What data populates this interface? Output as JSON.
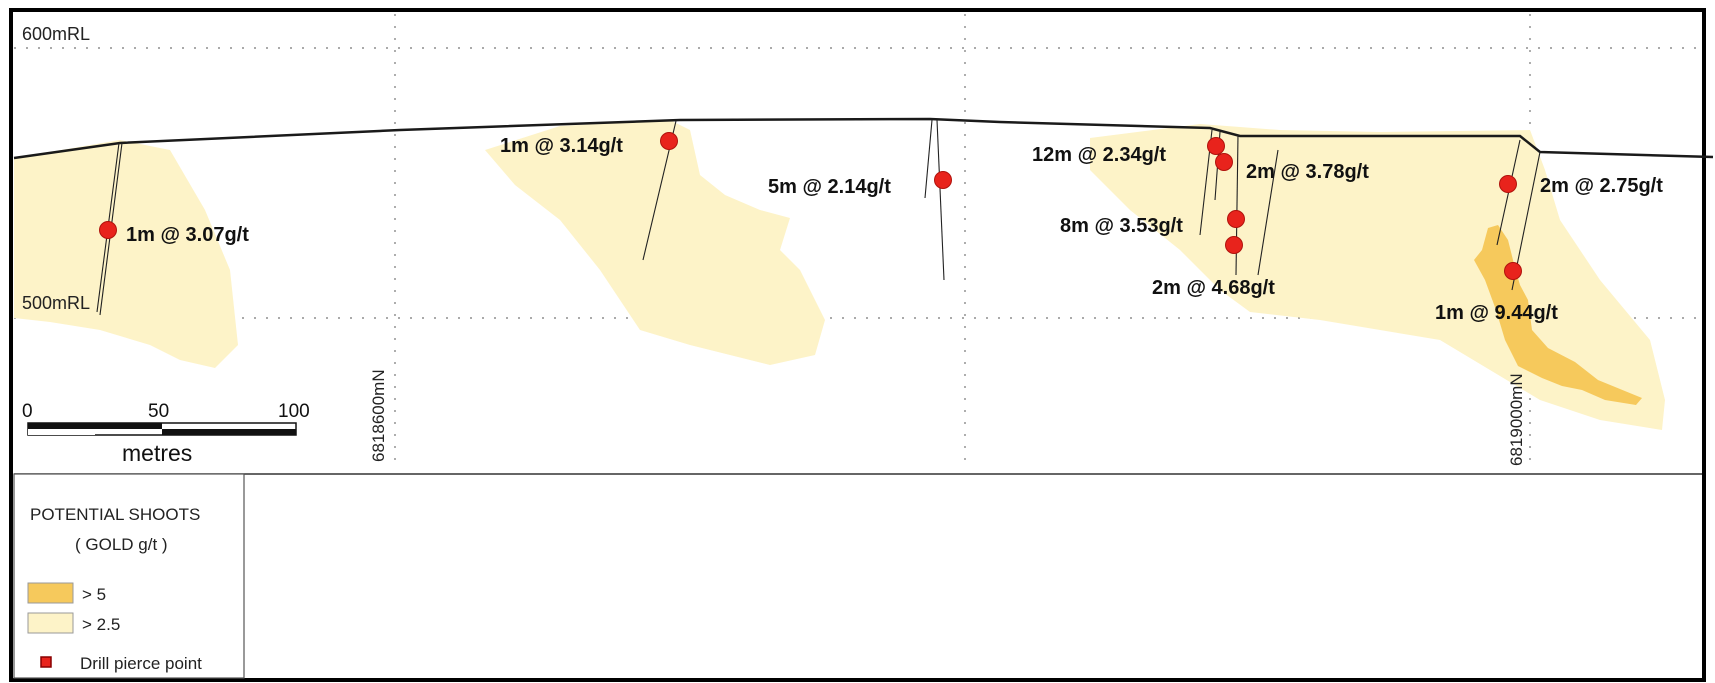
{
  "elevation_labels": {
    "upper": "600mRL",
    "lower": "500mRL"
  },
  "northing_labels": [
    "6818600mN",
    "6819000mN"
  ],
  "scale_bar": {
    "ticks": [
      "0",
      "50",
      "100"
    ],
    "unit": "metres"
  },
  "intercepts": [
    "1m @ 3.07g/t",
    "1m @ 3.14g/t",
    "5m @ 2.14g/t",
    "12m @ 2.34g/t",
    "2m @ 3.78g/t",
    "8m @ 3.53g/t",
    "2m @ 4.68g/t",
    "2m @ 2.75g/t",
    "1m @ 9.44g/t"
  ],
  "legend": {
    "title_line1": "POTENTIAL SHOOTS",
    "title_line2": "( GOLD g/t )",
    "items": [
      {
        "label": "> 5",
        "color": "#f6c95c"
      },
      {
        "label": "> 2.5",
        "color": "#fdf3c8"
      },
      {
        "label": "Drill pierce point",
        "color": "#e8231c"
      }
    ]
  },
  "colors": {
    "high_grade": "#f6c95c",
    "low_grade": "#fdf3c8",
    "pierce_point": "#e8231c",
    "surface": "#1a1a1a"
  }
}
